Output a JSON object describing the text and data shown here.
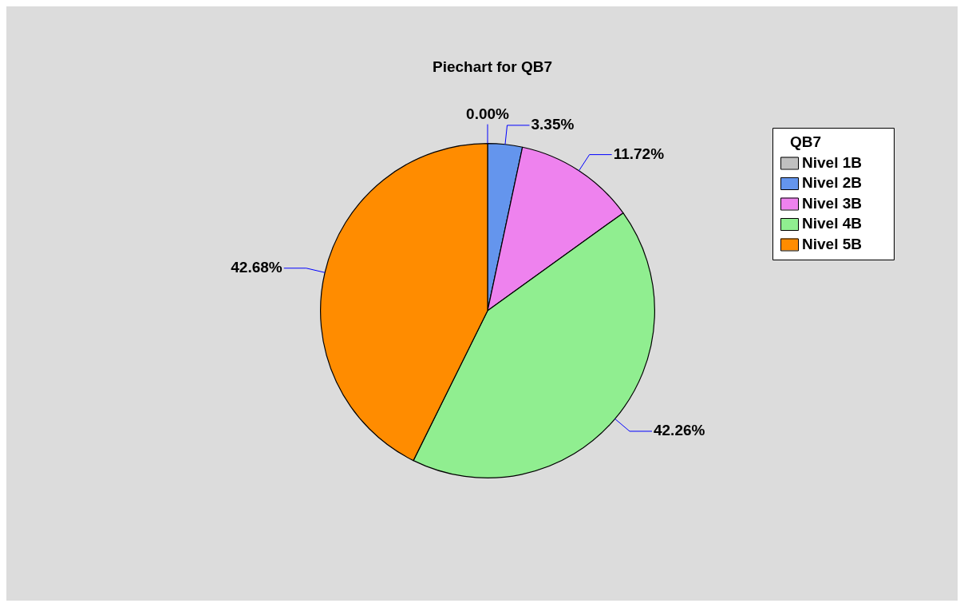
{
  "chart_data": {
    "type": "pie",
    "title": "Piechart for QB7",
    "legend_title": "QB7",
    "legend": "right",
    "categories": [
      "Nivel 1B",
      "Nivel 2B",
      "Nivel 3B",
      "Nivel 4B",
      "Nivel 5B"
    ],
    "values": [
      0,
      3.35,
      11.72,
      42.26,
      42.68
    ],
    "colors": [
      "#c0c0c0",
      "#6495ed",
      "#ee82ee",
      "#90ee90",
      "#ff8c00"
    ],
    "value_labels": [
      "0.00%",
      "3.35%",
      "11.72%",
      "42.26%",
      "42.68%"
    ]
  }
}
